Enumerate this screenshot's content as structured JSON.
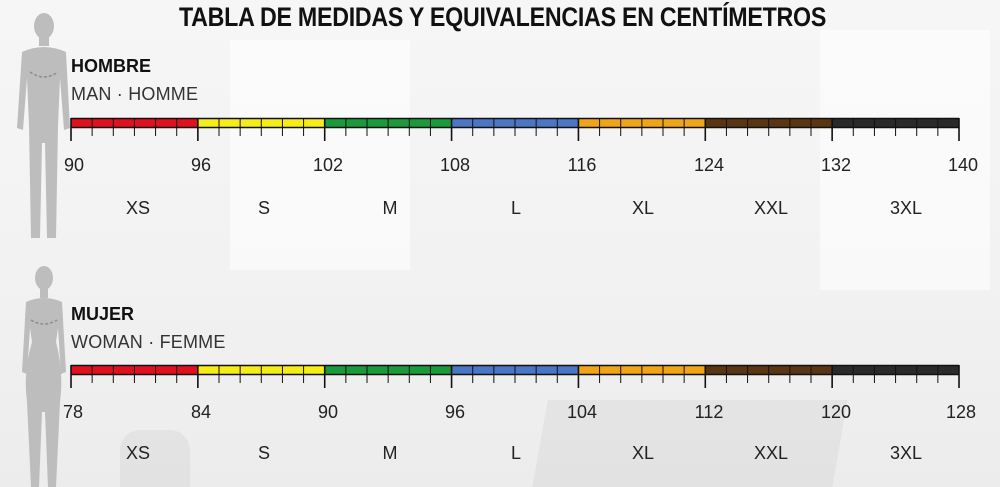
{
  "title": "TABLA DE MEDIDAS Y EQUIVALENCIAS EN CENTÍMETROS",
  "colors": {
    "XS": "#e0101e",
    "S": "#f6ec17",
    "M": "#1a9a3a",
    "L": "#4a76c4",
    "XL": "#f0a418",
    "XXL": "#5a3512",
    "3XL": "#2a2a2a"
  },
  "sizes": [
    "XS",
    "S",
    "M",
    "L",
    "XL",
    "XXL",
    "3XL"
  ],
  "sections": [
    {
      "id": "men",
      "title": "HOMBRE",
      "subtitle": "MAN · HOMME",
      "figure_icon": "male-silhouette-icon",
      "ticks": [
        "90",
        "96",
        "102",
        "108",
        "116",
        "124",
        "132",
        "140"
      ]
    },
    {
      "id": "women",
      "title": "MUJER",
      "subtitle": "WOMAN · FEMME",
      "figure_icon": "female-silhouette-icon",
      "ticks": [
        "78",
        "84",
        "90",
        "96",
        "104",
        "112",
        "120",
        "128"
      ]
    }
  ]
}
